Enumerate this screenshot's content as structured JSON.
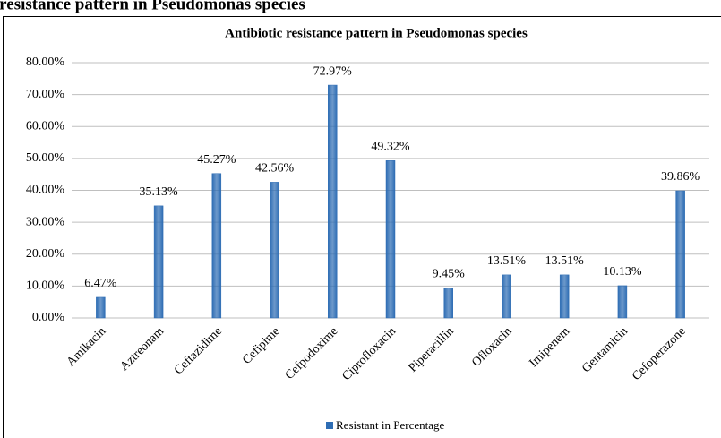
{
  "page_heading": "e resistance pattern in Pseudomonas species",
  "chart_data": {
    "type": "bar",
    "title": "Antibiotic resistance pattern in Pseudomonas species",
    "categories": [
      "Amikacin",
      "Aztreonam",
      "Ceftazidime",
      "Cefipime",
      "Cefpodoxime",
      "Ciprofloxacin",
      "Piperacillin",
      "Ofloxacin",
      "Imipenem",
      "Gentamicin",
      "Cefoperazone"
    ],
    "series": [
      {
        "name": "Resistant in Percentage",
        "color": "#2e6db4",
        "values": [
          6.47,
          35.13,
          45.27,
          42.56,
          72.97,
          49.32,
          9.45,
          13.51,
          13.51,
          10.13,
          39.86
        ],
        "value_labels": [
          "6.47%",
          "35.13%",
          "45.27%",
          "42.56%",
          "72.97%",
          "49.32%",
          "9.45%",
          "13.51%",
          "13.51%",
          "10.13%",
          "39.86%"
        ]
      }
    ],
    "ylim": [
      0,
      80
    ],
    "yticks": [
      {
        "value": 0,
        "label": "0.00%"
      },
      {
        "value": 10,
        "label": "10.00%"
      },
      {
        "value": 20,
        "label": "20.00%"
      },
      {
        "value": 30,
        "label": "30.00%"
      },
      {
        "value": 40,
        "label": "40.00%"
      },
      {
        "value": 50,
        "label": "50.00%"
      },
      {
        "value": 60,
        "label": "60.00%"
      },
      {
        "value": 70,
        "label": "70.00%"
      },
      {
        "value": 80,
        "label": "80.00%"
      }
    ],
    "grid": true,
    "legend": "bottom"
  }
}
